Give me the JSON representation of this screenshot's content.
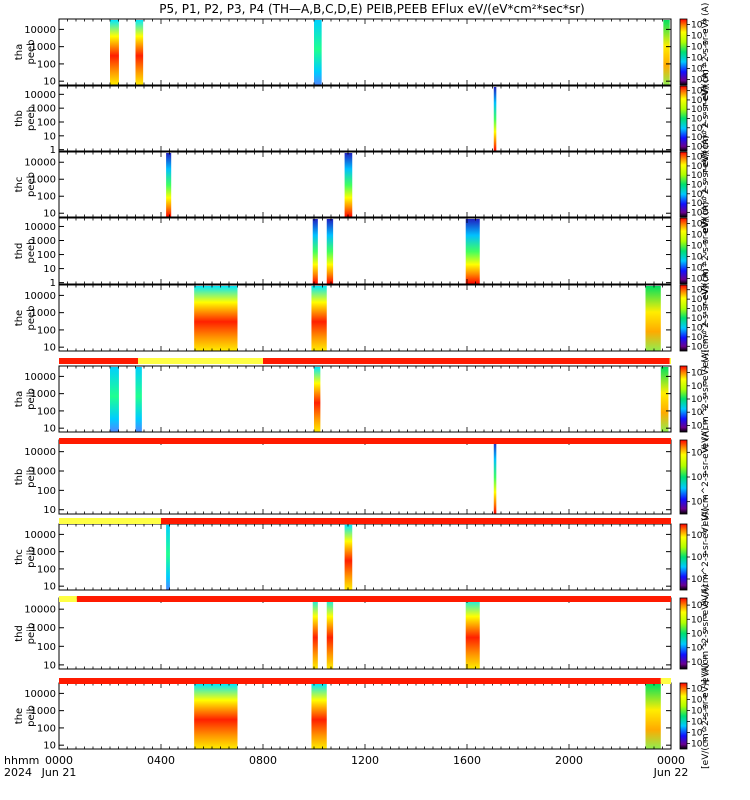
{
  "title": "P5, P1, P2, P3, P4 (TH—A,B,C,D,E) PEIB,PEEB EFlux eV/(eV*cm²*sec*sr)",
  "x_axis": {
    "tick_labels": [
      "0000",
      "0400",
      "0800",
      "1200",
      "1600",
      "2000",
      "0000"
    ],
    "date_labels": [
      "Jun 21",
      "Jun 22"
    ],
    "row_labels": [
      "hhmm",
      "2024"
    ],
    "range_hours": [
      0,
      24
    ]
  },
  "y_ticks": [
    "10000",
    "1000",
    "100",
    "10",
    "1"
  ],
  "colorbar_label_long": "eV/(cm^2-s-sr-eV) (A)",
  "colorbar_label_short": "[eV/(cm^2-s-sr-eV)] (A)",
  "colors": {
    "flag_red": "#ff1a00",
    "flag_yellow": "#ffff44"
  },
  "chart_data": {
    "type": "heatmap",
    "panels": [
      {
        "probe": "tha",
        "species": "peeb",
        "line1": "tha",
        "line2": "peeb",
        "ylim": [
          6,
          40000
        ],
        "cb_exp": [
          3,
          8
        ],
        "blocks": [
          {
            "t": [
              2.0,
              2.35
            ],
            "style": "hot"
          },
          {
            "t": [
              3.0,
              3.3
            ],
            "style": "hot"
          },
          {
            "t": [
              10.0,
              10.3
            ],
            "style": "cool"
          },
          {
            "t": [
              23.7,
              23.95
            ],
            "style": "mix"
          }
        ]
      },
      {
        "probe": "thb",
        "species": "peeb",
        "line1": "thb",
        "line2": "peeb",
        "ylim": [
          0.8,
          40000
        ],
        "cb_exp": [
          2,
          8
        ],
        "blocks": [
          {
            "t": [
              17.05,
              17.15
            ],
            "style": "stack"
          }
        ]
      },
      {
        "probe": "thc",
        "species": "peeb",
        "line1": "thc",
        "line2": "peeb",
        "ylim": [
          6,
          40000
        ],
        "cb_exp": [
          2,
          8
        ],
        "blocks": [
          {
            "t": [
              4.2,
              4.4
            ],
            "style": "stack"
          },
          {
            "t": [
              11.2,
              11.5
            ],
            "style": "stack"
          }
        ]
      },
      {
        "probe": "thd",
        "species": "peeb",
        "line1": "thd",
        "line2": "peeb",
        "ylim": [
          0.8,
          40000
        ],
        "cb_exp": [
          3,
          8
        ],
        "blocks": [
          {
            "t": [
              9.95,
              10.15
            ],
            "style": "stack"
          },
          {
            "t": [
              10.5,
              10.75
            ],
            "style": "stack"
          },
          {
            "t": [
              15.95,
              16.5
            ],
            "style": "stack"
          }
        ]
      },
      {
        "probe": "the",
        "species": "peeb",
        "line1": "the",
        "line2": "peeb",
        "ylim": [
          6,
          40000
        ],
        "cb_exp": [
          2,
          8
        ],
        "blocks": [
          {
            "t": [
              5.3,
              7.0
            ],
            "style": "hot"
          },
          {
            "t": [
              9.9,
              10.5
            ],
            "style": "hot"
          },
          {
            "t": [
              23.0,
              23.6
            ],
            "style": "mix"
          }
        ]
      },
      {
        "probe": "tha",
        "species": "peib",
        "line1": "tha",
        "line2": "peib",
        "ylim": [
          6,
          40000
        ],
        "cb_exp": [
          3,
          7
        ],
        "blocks": [
          {
            "t": [
              2.0,
              2.35
            ],
            "style": "cool"
          },
          {
            "t": [
              3.0,
              3.25
            ],
            "style": "cool"
          },
          {
            "t": [
              10.0,
              10.25
            ],
            "style": "hot"
          },
          {
            "t": [
              23.6,
              23.9
            ],
            "style": "mix"
          }
        ]
      },
      {
        "probe": "thb",
        "species": "peib",
        "line1": "thb",
        "line2": "peib",
        "ylim": [
          6,
          40000
        ],
        "cb_exp": [
          3,
          5
        ],
        "blocks": [
          {
            "t": [
              17.05,
              17.15
            ],
            "style": "stack"
          }
        ]
      },
      {
        "probe": "thc",
        "species": "peib",
        "line1": "thc",
        "line2": "peib",
        "ylim": [
          6,
          40000
        ],
        "cb_exp": [
          3,
          5
        ],
        "blocks": [
          {
            "t": [
              4.2,
              4.35
            ],
            "style": "cool"
          },
          {
            "t": [
              11.2,
              11.5
            ],
            "style": "hot"
          }
        ]
      },
      {
        "probe": "thd",
        "species": "peib",
        "line1": "thd",
        "line2": "peib",
        "ylim": [
          6,
          40000
        ],
        "cb_exp": [
          3,
          7
        ],
        "blocks": [
          {
            "t": [
              9.95,
              10.15
            ],
            "style": "hot"
          },
          {
            "t": [
              10.5,
              10.75
            ],
            "style": "hot"
          },
          {
            "t": [
              15.95,
              16.5
            ],
            "style": "hot"
          }
        ]
      },
      {
        "probe": "the",
        "species": "peib",
        "line1": "the",
        "line2": "peib",
        "ylim": [
          6,
          40000
        ],
        "cb_exp": [
          2,
          7
        ],
        "blocks": [
          {
            "t": [
              5.3,
              7.0
            ],
            "style": "hot"
          },
          {
            "t": [
              9.9,
              10.5
            ],
            "style": "hot"
          },
          {
            "t": [
              23.0,
              23.6
            ],
            "style": "mix"
          }
        ]
      }
    ],
    "flag_bars": [
      {
        "after_panel": 4,
        "segments": [
          {
            "t": [
              0,
              3.1
            ],
            "color": "red"
          },
          {
            "t": [
              3.1,
              8.0
            ],
            "color": "yellow"
          },
          {
            "t": [
              8.0,
              23.95
            ],
            "color": "red"
          },
          {
            "t": [
              23.95,
              24
            ],
            "color": "yellow"
          }
        ]
      },
      {
        "after_panel": 5,
        "segments": [
          {
            "t": [
              0,
              24
            ],
            "color": "red"
          }
        ]
      },
      {
        "after_panel": 6,
        "segments": [
          {
            "t": [
              0,
              4.0
            ],
            "color": "yellow"
          },
          {
            "t": [
              4.0,
              24
            ],
            "color": "red"
          }
        ]
      },
      {
        "after_panel": 7,
        "segments": [
          {
            "t": [
              0,
              0.7
            ],
            "color": "yellow"
          },
          {
            "t": [
              0.7,
              24
            ],
            "color": "red"
          }
        ]
      },
      {
        "after_panel": 8,
        "segments": [
          {
            "t": [
              0,
              23.6
            ],
            "color": "red"
          },
          {
            "t": [
              23.6,
              24
            ],
            "color": "yellow"
          }
        ]
      }
    ]
  }
}
